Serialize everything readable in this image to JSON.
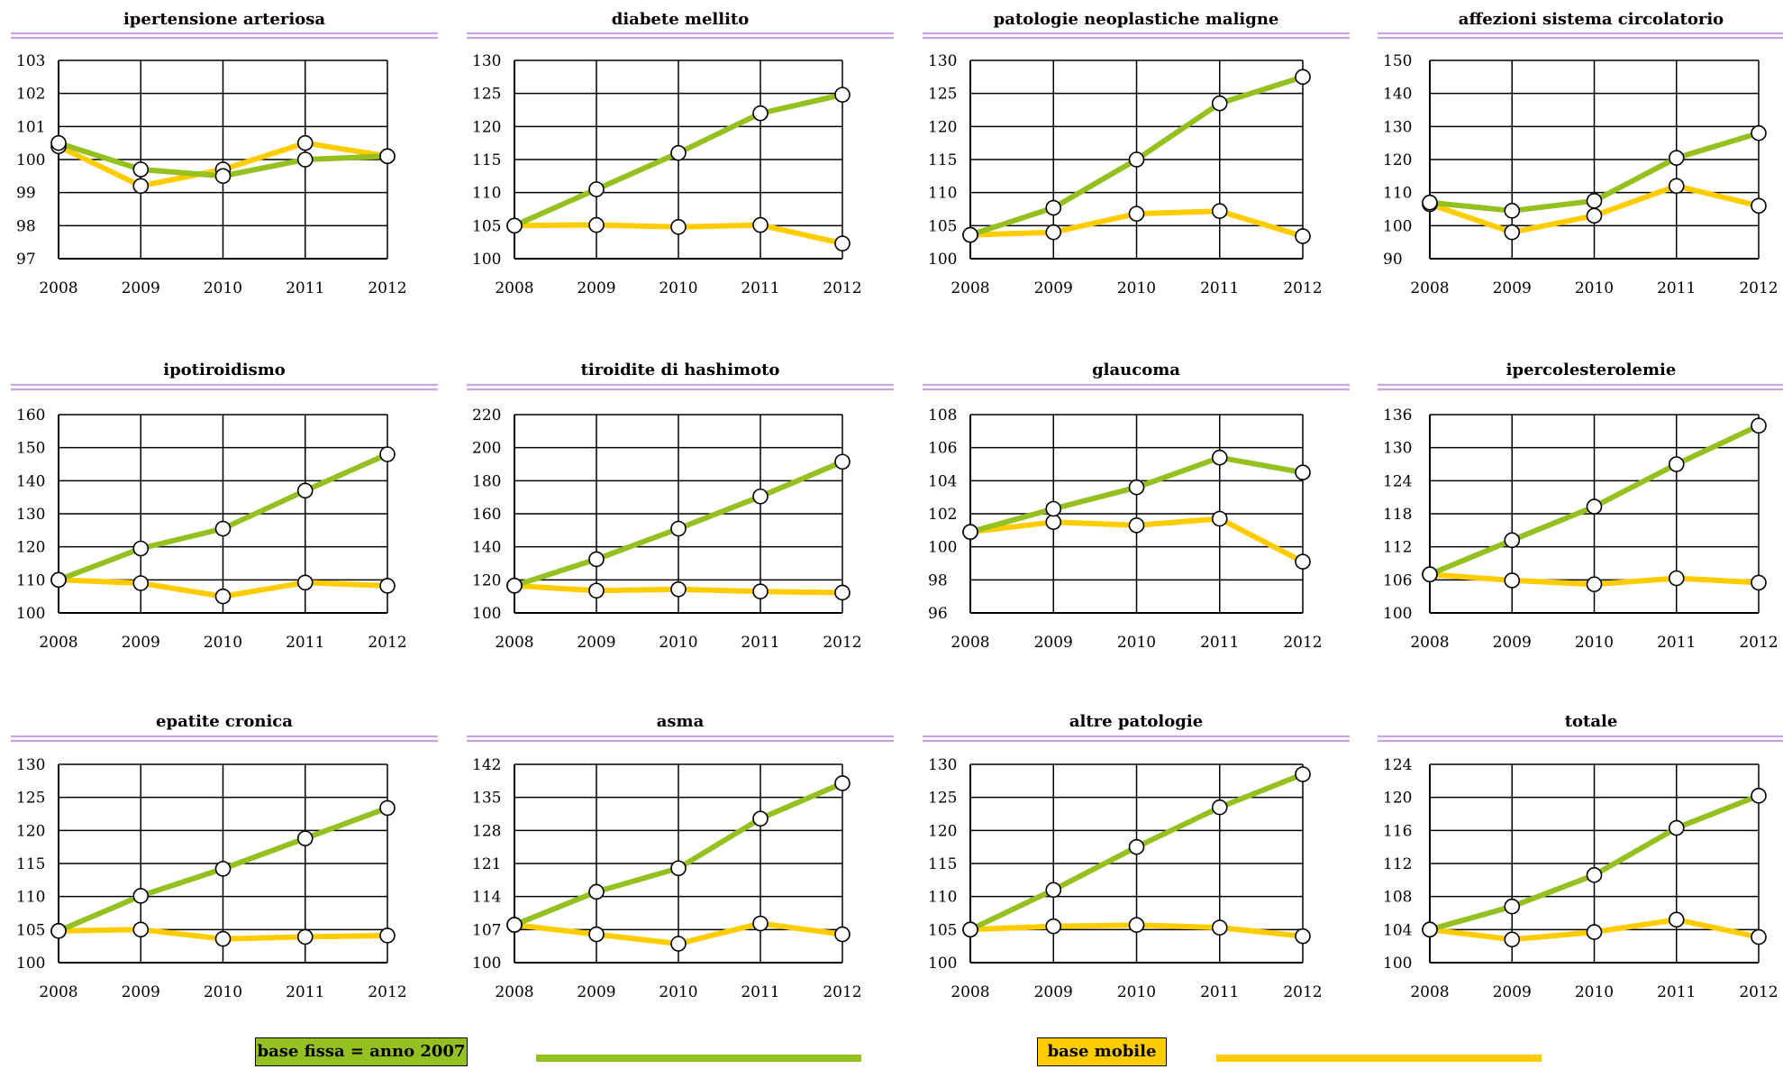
{
  "colors": {
    "fixed": "#94c11f",
    "mobile": "#ffcc00",
    "title_rule": "#c9a3e6",
    "grid": "#000000"
  },
  "legend": {
    "fixed_label": "base fissa = anno 2007",
    "mobile_label": "base mobile"
  },
  "chart_data": [
    {
      "type": "line",
      "title": "ipertensione arteriosa",
      "categories": [
        "2008",
        "2009",
        "2010",
        "2011",
        "2012"
      ],
      "yticks": [
        "97",
        "98",
        "99",
        "100",
        "101",
        "102",
        "103"
      ],
      "ylim": [
        97,
        103
      ],
      "series": [
        {
          "values": [
            100.5,
            99.7,
            99.5,
            100.0,
            100.1
          ]
        },
        {
          "values": [
            100.4,
            99.2,
            99.7,
            100.5,
            100.1
          ]
        }
      ]
    },
    {
      "type": "line",
      "title": "diabete mellito",
      "categories": [
        "2008",
        "2009",
        "2010",
        "2011",
        "2012"
      ],
      "yticks": [
        "100",
        "105",
        "110",
        "115",
        "120",
        "125",
        "130"
      ],
      "ylim": [
        100,
        130
      ],
      "series": [
        {
          "values": [
            105,
            110.5,
            116,
            122,
            124.8
          ]
        },
        {
          "values": [
            105,
            105.1,
            104.8,
            105.1,
            102.3
          ]
        }
      ]
    },
    {
      "type": "line",
      "title": "patologie neoplastiche maligne",
      "categories": [
        "2008",
        "2009",
        "2010",
        "2011",
        "2012"
      ],
      "yticks": [
        "100",
        "105",
        "110",
        "115",
        "120",
        "125",
        "130"
      ],
      "ylim": [
        100,
        130
      ],
      "series": [
        {
          "values": [
            103.6,
            107.7,
            115,
            123.5,
            127.5
          ]
        },
        {
          "values": [
            103.6,
            104,
            106.8,
            107.2,
            103.4
          ]
        }
      ]
    },
    {
      "type": "line",
      "title": "affezioni sistema circolatorio",
      "categories": [
        "2008",
        "2009",
        "2010",
        "2011",
        "2012"
      ],
      "yticks": [
        "90",
        "100",
        "110",
        "120",
        "130",
        "140",
        "150"
      ],
      "ylim": [
        90,
        150
      ],
      "series": [
        {
          "values": [
            107,
            104.5,
            107.5,
            120.5,
            128
          ]
        },
        {
          "values": [
            106.5,
            98,
            103,
            112,
            106
          ]
        }
      ]
    },
    {
      "type": "line",
      "title": "ipotiroidismo",
      "categories": [
        "2008",
        "2009",
        "2010",
        "2011",
        "2012"
      ],
      "yticks": [
        "100",
        "110",
        "120",
        "130",
        "140",
        "150",
        "160"
      ],
      "ylim": [
        100,
        160
      ],
      "series": [
        {
          "values": [
            110,
            119.5,
            125.5,
            137,
            148
          ]
        },
        {
          "values": [
            110,
            109,
            105,
            109.2,
            108.2
          ]
        }
      ]
    },
    {
      "type": "line",
      "title": "tiroidite di hashimoto",
      "categories": [
        "2008",
        "2009",
        "2010",
        "2011",
        "2012"
      ],
      "yticks": [
        "100",
        "120",
        "140",
        "160",
        "180",
        "200",
        "220"
      ],
      "ylim": [
        100,
        220
      ],
      "series": [
        {
          "values": [
            116.5,
            132.5,
            151,
            170.5,
            191.5
          ]
        },
        {
          "values": [
            116.5,
            113.5,
            114.3,
            113,
            112.3
          ]
        }
      ]
    },
    {
      "type": "line",
      "title": "glaucoma",
      "categories": [
        "2008",
        "2009",
        "2010",
        "2011",
        "2012"
      ],
      "yticks": [
        "96",
        "98",
        "100",
        "102",
        "104",
        "106",
        "108"
      ],
      "ylim": [
        96,
        108
      ],
      "series": [
        {
          "values": [
            100.9,
            102.3,
            103.6,
            105.4,
            104.5
          ]
        },
        {
          "values": [
            100.9,
            101.5,
            101.3,
            101.7,
            99.1
          ]
        }
      ]
    },
    {
      "type": "line",
      "title": "ipercolesterolemie",
      "categories": [
        "2008",
        "2009",
        "2010",
        "2011",
        "2012"
      ],
      "yticks": [
        "100",
        "106",
        "112",
        "118",
        "124",
        "130",
        "136"
      ],
      "ylim": [
        100,
        136
      ],
      "series": [
        {
          "values": [
            107,
            113.2,
            119.3,
            127,
            134
          ]
        },
        {
          "values": [
            107,
            105.9,
            105.2,
            106.3,
            105.5
          ]
        }
      ]
    },
    {
      "type": "line",
      "title": "epatite cronica",
      "categories": [
        "2008",
        "2009",
        "2010",
        "2011",
        "2012"
      ],
      "yticks": [
        "100",
        "105",
        "110",
        "115",
        "120",
        "125",
        "130"
      ],
      "ylim": [
        100,
        130
      ],
      "series": [
        {
          "values": [
            104.8,
            110.1,
            114.2,
            118.8,
            123.4
          ]
        },
        {
          "values": [
            104.8,
            105,
            103.6,
            103.9,
            104.1
          ]
        }
      ]
    },
    {
      "type": "line",
      "title": "asma",
      "categories": [
        "2008",
        "2009",
        "2010",
        "2011",
        "2012"
      ],
      "yticks": [
        "100",
        "107",
        "114",
        "121",
        "128",
        "135",
        "142"
      ],
      "ylim": [
        100,
        142
      ],
      "series": [
        {
          "values": [
            108,
            115,
            120,
            130.5,
            138
          ]
        },
        {
          "values": [
            108,
            106,
            104,
            108.3,
            106
          ]
        }
      ]
    },
    {
      "type": "line",
      "title": "altre patologie",
      "categories": [
        "2008",
        "2009",
        "2010",
        "2011",
        "2012"
      ],
      "yticks": [
        "100",
        "105",
        "110",
        "115",
        "120",
        "125",
        "130"
      ],
      "ylim": [
        100,
        130
      ],
      "series": [
        {
          "values": [
            105,
            111,
            117.5,
            123.5,
            128.5
          ]
        },
        {
          "values": [
            105,
            105.5,
            105.7,
            105.3,
            104
          ]
        }
      ]
    },
    {
      "type": "line",
      "title": "totale",
      "categories": [
        "2008",
        "2009",
        "2010",
        "2011",
        "2012"
      ],
      "yticks": [
        "100",
        "104",
        "108",
        "112",
        "116",
        "120",
        "124"
      ],
      "ylim": [
        100,
        124
      ],
      "series": [
        {
          "values": [
            104,
            106.8,
            110.6,
            116.3,
            120.2
          ]
        },
        {
          "values": [
            104,
            102.8,
            103.7,
            105.2,
            103.1
          ]
        }
      ]
    }
  ]
}
